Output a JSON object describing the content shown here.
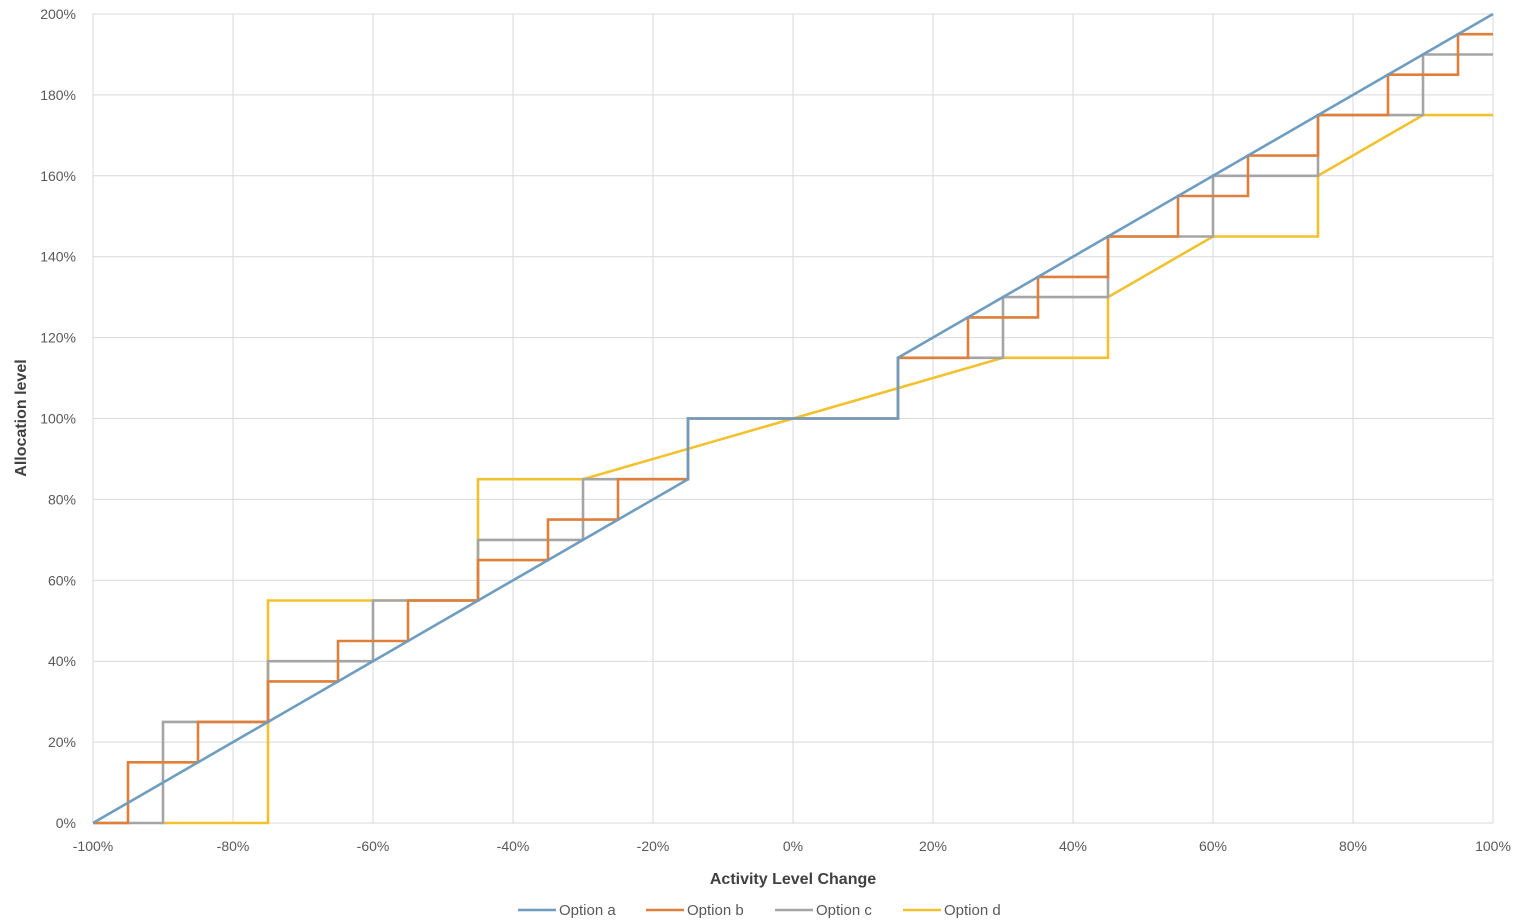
{
  "chart_data": {
    "type": "line",
    "xlabel": "Activity Level Change",
    "ylabel": "Allocation level",
    "x_ticks": [
      "-100%",
      "-80%",
      "-60%",
      "-40%",
      "-20%",
      "0%",
      "20%",
      "40%",
      "60%",
      "80%",
      "100%"
    ],
    "y_ticks": [
      "0%",
      "20%",
      "40%",
      "60%",
      "80%",
      "100%",
      "120%",
      "140%",
      "160%",
      "180%",
      "200%"
    ],
    "xlim": [
      -100,
      100
    ],
    "ylim": [
      0,
      200
    ],
    "grid": true,
    "legend_position": "bottom",
    "series": [
      {
        "name": "Option a",
        "color": "#6E9DC0",
        "x": [
          -100,
          -15,
          -15,
          15,
          15,
          100
        ],
        "y": [
          0,
          85,
          100,
          100,
          115,
          200
        ]
      },
      {
        "name": "Option b",
        "color": "#DF7F3A",
        "x": [
          -100,
          -95,
          -95,
          -85,
          -85,
          -75,
          -75,
          -65,
          -65,
          -55,
          -55,
          -45,
          -45,
          -35,
          -35,
          -25,
          -25,
          -15,
          -15,
          15,
          15,
          25,
          25,
          35,
          35,
          45,
          45,
          55,
          55,
          65,
          65,
          75,
          75,
          85,
          85,
          95,
          95,
          100
        ],
        "y": [
          0,
          0,
          15,
          15,
          25,
          25,
          35,
          35,
          45,
          45,
          55,
          55,
          65,
          65,
          75,
          75,
          85,
          85,
          100,
          100,
          115,
          115,
          125,
          125,
          135,
          135,
          145,
          145,
          155,
          155,
          165,
          165,
          175,
          175,
          185,
          185,
          195,
          195
        ]
      },
      {
        "name": "Option c",
        "color": "#A5A5A5",
        "x": [
          -100,
          -90,
          -90,
          -75,
          -75,
          -60,
          -60,
          -45,
          -45,
          -30,
          -30,
          -15,
          -15,
          15,
          15,
          30,
          30,
          45,
          45,
          60,
          60,
          75,
          75,
          90,
          90,
          100
        ],
        "y": [
          0,
          0,
          25,
          25,
          40,
          40,
          55,
          55,
          70,
          70,
          85,
          85,
          100,
          100,
          115,
          115,
          130,
          130,
          145,
          145,
          160,
          160,
          175,
          175,
          190,
          190
        ]
      },
      {
        "name": "Option d",
        "color": "#F2C12E",
        "x": [
          -90,
          -75,
          -75,
          -45,
          -45,
          -30,
          30,
          45,
          45,
          60,
          75,
          75,
          90,
          100
        ],
        "y": [
          0,
          0,
          55,
          55,
          85,
          85,
          115,
          115,
          130,
          145,
          145,
          160,
          175,
          175
        ]
      }
    ]
  }
}
